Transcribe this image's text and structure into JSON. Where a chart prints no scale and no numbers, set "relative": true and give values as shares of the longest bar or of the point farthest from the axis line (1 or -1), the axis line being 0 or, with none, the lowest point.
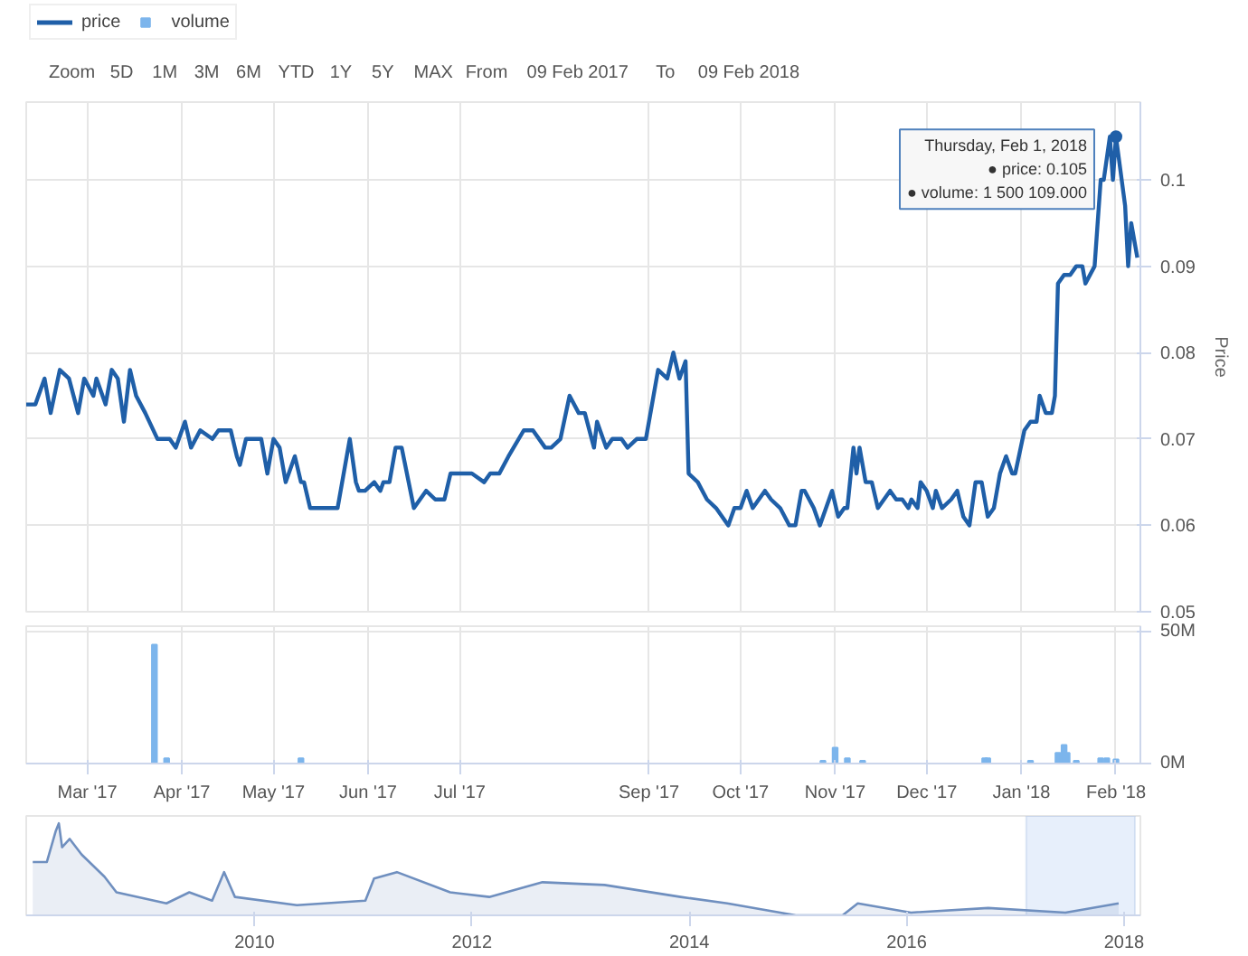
{
  "chart_data": [
    {
      "type": "line",
      "ylabel": "Price",
      "legend": "top left",
      "grid": true,
      "tick_labels": "y",
      "annotations": [
        "Zoom",
        "5D",
        "1M",
        "3M",
        "6M",
        "YTD",
        "1Y",
        "5Y",
        "MAX",
        "From",
        "09 Feb 2017",
        "To",
        "09 Feb 2018",
        {
          "text": "Thursday, Feb 1, 2018\n● price: 0.105\n● volume: 1 500 109.000",
          "x": "2018-02-01",
          "y": 0.105
        }
      ],
      "xlim": [
        "2017-02-09",
        "2018-02-09"
      ],
      "xticks": [
        {
          "value": "2017-03-01",
          "label": null
        },
        {
          "value": "2017-04-01",
          "label": null
        },
        {
          "value": "2017-05-01",
          "label": null
        },
        {
          "value": "2017-06-01",
          "label": null
        },
        {
          "value": "2017-07-01",
          "label": null
        },
        {
          "value": "2017-09-01",
          "label": null
        },
        {
          "value": "2017-10-01",
          "label": null
        },
        {
          "value": "2017-11-01",
          "label": null
        },
        {
          "value": "2017-12-01",
          "label": null
        },
        {
          "value": "2018-01-01",
          "label": null
        },
        {
          "value": "2018-02-01",
          "label": null
        }
      ],
      "ylim": [
        0.05,
        0.109
      ],
      "yticks": [
        0.05,
        0.06,
        0.07,
        0.08,
        0.09,
        0.1
      ],
      "series": [
        {
          "name": "price",
          "color": "#1f5fa8",
          "x": [
            "2017-02-09",
            "2017-02-12",
            "2017-02-15",
            "2017-02-17",
            "2017-02-20",
            "2017-02-23",
            "2017-02-26",
            "2017-02-28",
            "2017-03-03",
            "2017-03-04",
            "2017-03-07",
            "2017-03-09",
            "2017-03-11",
            "2017-03-13",
            "2017-03-15",
            "2017-03-17",
            "2017-03-20",
            "2017-03-24",
            "2017-03-28",
            "2017-03-30",
            "2017-04-02",
            "2017-04-04",
            "2017-04-07",
            "2017-04-11",
            "2017-04-13",
            "2017-04-17",
            "2017-04-19",
            "2017-04-20",
            "2017-04-22",
            "2017-04-27",
            "2017-04-29",
            "2017-05-01",
            "2017-05-03",
            "2017-05-05",
            "2017-05-08",
            "2017-05-10",
            "2017-05-11",
            "2017-05-13",
            "2017-05-22",
            "2017-05-26",
            "2017-05-28",
            "2017-05-29",
            "2017-05-31",
            "2017-06-03",
            "2017-06-05",
            "2017-06-06",
            "2017-06-08",
            "2017-06-10",
            "2017-06-12",
            "2017-06-16",
            "2017-06-20",
            "2017-06-23",
            "2017-06-26",
            "2017-06-28",
            "2017-07-05",
            "2017-07-09",
            "2017-07-11",
            "2017-07-14",
            "2017-07-17",
            "2017-07-22",
            "2017-07-25",
            "2017-07-29",
            "2017-07-31",
            "2017-08-03",
            "2017-08-06",
            "2017-08-09",
            "2017-08-11",
            "2017-08-14",
            "2017-08-15",
            "2017-08-18",
            "2017-08-20",
            "2017-08-23",
            "2017-08-25",
            "2017-08-28",
            "2017-08-31",
            "2017-09-04",
            "2017-09-07",
            "2017-09-09",
            "2017-09-11",
            "2017-09-13",
            "2017-09-14",
            "2017-09-17",
            "2017-09-20",
            "2017-09-23",
            "2017-09-27",
            "2017-09-29",
            "2017-10-01",
            "2017-10-03",
            "2017-10-05",
            "2017-10-09",
            "2017-10-11",
            "2017-10-14",
            "2017-10-17",
            "2017-10-19",
            "2017-10-21",
            "2017-10-22",
            "2017-10-25",
            "2017-10-27",
            "2017-10-31",
            "2017-11-02",
            "2017-11-04",
            "2017-11-05",
            "2017-11-07",
            "2017-11-08",
            "2017-11-09",
            "2017-11-11",
            "2017-11-13",
            "2017-11-15",
            "2017-11-17",
            "2017-11-19",
            "2017-11-21",
            "2017-11-23",
            "2017-11-25",
            "2017-11-26",
            "2017-11-28",
            "2017-11-29",
            "2017-12-01",
            "2017-12-03",
            "2017-12-04",
            "2017-12-06",
            "2017-12-09",
            "2017-12-11",
            "2017-12-13",
            "2017-12-15",
            "2017-12-17",
            "2017-12-19",
            "2017-12-21",
            "2017-12-23",
            "2017-12-25",
            "2017-12-27",
            "2017-12-29",
            "2017-12-30",
            "2018-01-02",
            "2018-01-04",
            "2018-01-06",
            "2018-01-07",
            "2018-01-09",
            "2018-01-11",
            "2018-01-12",
            "2018-01-13",
            "2018-01-15",
            "2018-01-17",
            "2018-01-19",
            "2018-01-21",
            "2018-01-22",
            "2018-01-25",
            "2018-01-27",
            "2018-01-28",
            "2018-01-30",
            "2018-01-31",
            "2018-02-01",
            "2018-02-04",
            "2018-02-05",
            "2018-02-06",
            "2018-02-08"
          ],
          "values": [
            0.074,
            0.074,
            0.077,
            0.073,
            0.078,
            0.077,
            0.073,
            0.077,
            0.075,
            0.077,
            0.074,
            0.078,
            0.077,
            0.072,
            0.078,
            0.075,
            0.073,
            0.07,
            0.07,
            0.069,
            0.072,
            0.069,
            0.071,
            0.07,
            0.071,
            0.071,
            0.068,
            0.067,
            0.07,
            0.07,
            0.066,
            0.07,
            0.069,
            0.065,
            0.068,
            0.065,
            0.065,
            0.062,
            0.062,
            0.07,
            0.065,
            0.064,
            0.064,
            0.065,
            0.064,
            0.065,
            0.065,
            0.069,
            0.069,
            0.062,
            0.064,
            0.063,
            0.063,
            0.066,
            0.066,
            0.065,
            0.066,
            0.066,
            0.068,
            0.071,
            0.071,
            0.069,
            0.069,
            0.07,
            0.075,
            0.073,
            0.073,
            0.069,
            0.072,
            0.069,
            0.07,
            0.07,
            0.069,
            0.07,
            0.07,
            0.078,
            0.077,
            0.08,
            0.077,
            0.079,
            0.066,
            0.065,
            0.063,
            0.062,
            0.06,
            0.062,
            0.062,
            0.064,
            0.062,
            0.064,
            0.063,
            0.062,
            0.06,
            0.06,
            0.064,
            0.064,
            0.062,
            0.06,
            0.064,
            0.061,
            0.062,
            0.062,
            0.069,
            0.066,
            0.069,
            0.065,
            0.065,
            0.062,
            0.063,
            0.064,
            0.063,
            0.063,
            0.062,
            0.063,
            0.062,
            0.065,
            0.064,
            0.062,
            0.064,
            0.062,
            0.063,
            0.064,
            0.061,
            0.06,
            0.065,
            0.065,
            0.061,
            0.062,
            0.066,
            0.068,
            0.066,
            0.066,
            0.071,
            0.072,
            0.072,
            0.075,
            0.073,
            0.073,
            0.075,
            0.088,
            0.089,
            0.089,
            0.09,
            0.09,
            0.088,
            0.09,
            0.1,
            0.1,
            0.105,
            0.1,
            0.105,
            0.097,
            0.09,
            0.095,
            0.091
          ]
        }
      ]
    },
    {
      "type": "bar",
      "grid": true,
      "xlim": [
        "2017-02-09",
        "2018-02-09"
      ],
      "xticks": [
        {
          "value": "2017-03-01",
          "label": "Mar '17"
        },
        {
          "value": "2017-04-01",
          "label": "Apr '17"
        },
        {
          "value": "2017-05-01",
          "label": "May '17"
        },
        {
          "value": "2017-06-01",
          "label": "Jun '17"
        },
        {
          "value": "2017-07-01",
          "label": "Jul '17"
        },
        {
          "value": "2017-09-01",
          "label": "Sep '17"
        },
        {
          "value": "2017-10-01",
          "label": "Oct '17"
        },
        {
          "value": "2017-11-01",
          "label": "Nov '17"
        },
        {
          "value": "2017-12-01",
          "label": "Dec '17"
        },
        {
          "value": "2018-01-01",
          "label": "Jan '18"
        },
        {
          "value": "2018-02-01",
          "label": "Feb '18"
        }
      ],
      "ylim": [
        0,
        52
      ],
      "yticks": [
        {
          "value": 0,
          "label": "0M"
        },
        {
          "value": 50,
          "label": "50M"
        }
      ],
      "series": [
        {
          "name": "volume",
          "color": "#7cb5ec",
          "x": [
            "2017-03-23",
            "2017-03-27",
            "2017-05-10",
            "2017-10-28",
            "2017-11-01",
            "2017-11-05",
            "2017-11-10",
            "2017-12-20",
            "2017-12-21",
            "2018-01-04",
            "2018-01-13",
            "2018-01-15",
            "2018-01-16",
            "2018-01-19",
            "2018-01-27",
            "2018-01-29",
            "2018-02-01"
          ],
          "values": [
            45,
            2,
            2,
            1,
            6,
            2,
            1,
            2,
            2,
            1,
            4,
            7,
            4,
            1,
            2,
            2,
            1.5
          ]
        }
      ]
    },
    {
      "type": "area",
      "relative": true,
      "tick_labels": "x",
      "xlim": [
        2007.9,
        2018.15
      ],
      "xticks": [
        2010,
        2012,
        2014,
        2016,
        2018
      ],
      "bands": [
        {
          "axis": "x",
          "from": 2017.1,
          "to": 2018.1,
          "color": "#cfe0f7"
        }
      ],
      "series": [
        {
          "color": "#6f8fbf",
          "x": [
            2007.96,
            2008.09,
            2008.17,
            2008.2,
            2008.23,
            2008.3,
            2008.41,
            2008.62,
            2008.73,
            2009.19,
            2009.4,
            2009.61,
            2009.72,
            2009.82,
            2010.39,
            2011.02,
            2011.1,
            2011.31,
            2011.8,
            2012.16,
            2012.65,
            2013.22,
            2013.92,
            2014.35,
            2014.98,
            2015.41,
            2015.55,
            2016.04,
            2016.75,
            2017.46,
            2017.95
          ],
          "values": [
            0.58,
            0.58,
            0.91,
            1,
            0.74,
            0.83,
            0.66,
            0.42,
            0.25,
            0.13,
            0.25,
            0.16,
            0.47,
            0.2,
            0.11,
            0.16,
            0.4,
            0.47,
            0.25,
            0.2,
            0.36,
            0.33,
            0.2,
            0.13,
            0,
            0,
            0.13,
            0.03,
            0.08,
            0.03,
            0.13
          ]
        }
      ]
    }
  ]
}
